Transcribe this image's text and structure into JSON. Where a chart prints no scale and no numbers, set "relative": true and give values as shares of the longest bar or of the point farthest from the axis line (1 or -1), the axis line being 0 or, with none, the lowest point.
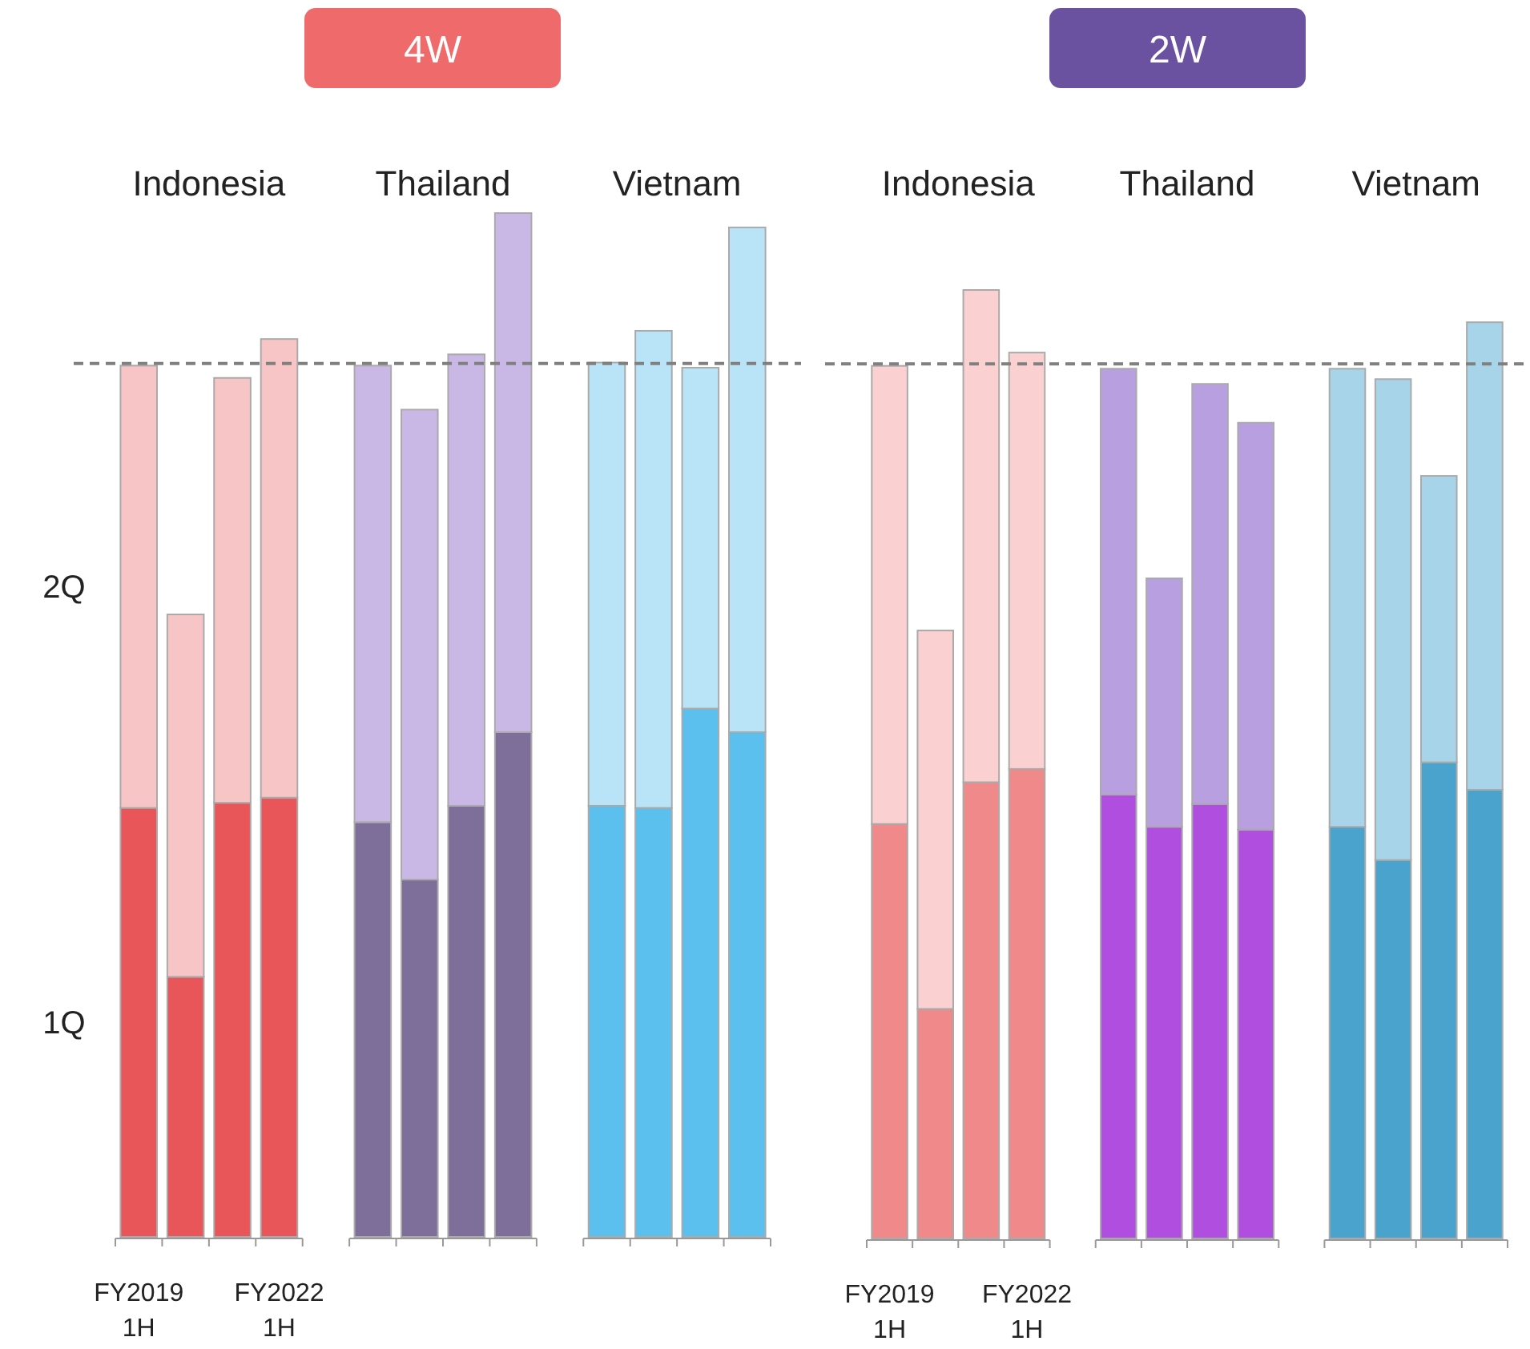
{
  "chart_data": [
    {
      "type": "bar",
      "title": "4W",
      "stacked": true,
      "relative": true,
      "categories": [
        "FY2019 1H",
        null,
        null,
        "FY2022 1H",
        null,
        null,
        null,
        null,
        null,
        null,
        null,
        null,
        null,
        null
      ],
      "annotations": [
        "Indonesia",
        "Thailand",
        "Vietnam"
      ],
      "series": [
        {
          "name": "1Q",
          "values": [
            0.419,
            0.254,
            0.424,
            0.429,
            null,
            0.405,
            0.349,
            0.421,
            0.493,
            null,
            0.421,
            0.419,
            0.516,
            0.493
          ],
          "colors": [
            "#e8565a",
            "#e8565a",
            "#e8565a",
            "#e8565a",
            null,
            "#7d6f9a",
            "#7d6f9a",
            "#7d6f9a",
            "#7d6f9a",
            null,
            "#5bc0ee",
            "#5bc0ee",
            "#5bc0ee",
            "#5bc0ee"
          ]
        },
        {
          "name": "2Q",
          "values": [
            0.432,
            0.354,
            0.415,
            0.448,
            null,
            0.446,
            0.459,
            0.441,
            0.507,
            null,
            0.433,
            0.466,
            0.333,
            0.493
          ],
          "colors": [
            "#f7c5c6",
            "#f7c5c6",
            "#f7c5c6",
            "#f7c5c6",
            null,
            "#c9b8e6",
            "#c9b8e6",
            "#c9b8e6",
            "#c9b8e6",
            null,
            "#b9e4f8",
            "#b9e4f8",
            "#b9e4f8",
            "#b9e4f8"
          ]
        }
      ],
      "ref_lines": [
        {
          "axis": "y",
          "value": 0.853,
          "color": "#808080",
          "line_style": "dashed"
        }
      ]
    },
    {
      "type": "bar",
      "title": "2W",
      "stacked": true,
      "relative": true,
      "categories": [
        "FY2019 1H",
        null,
        null,
        "FY2022 1H",
        null,
        null,
        null,
        null,
        null,
        null,
        null,
        null,
        null,
        null
      ],
      "annotations": [
        "Indonesia",
        "Thailand",
        "Vietnam"
      ],
      "series": [
        {
          "values": [
            0.437,
            0.242,
            0.481,
            0.495,
            null,
            0.468,
            0.434,
            0.458,
            0.431,
            null,
            0.434,
            0.399,
            0.502,
            0.473
          ],
          "colors": [
            "#f08a8a",
            "#f08a8a",
            "#f08a8a",
            "#f08a8a",
            null,
            "#b04ee0",
            "#b04ee0",
            "#b04ee0",
            "#b04ee0",
            null,
            "#4aa3cc",
            "#4aa3cc",
            "#4aa3cc",
            "#4aa3cc"
          ]
        },
        {
          "values": [
            0.483,
            0.399,
            0.519,
            0.439,
            null,
            0.449,
            0.262,
            0.443,
            0.429,
            null,
            0.483,
            0.507,
            0.302,
            0.493
          ],
          "colors": [
            "#fbd0d0",
            "#fbd0d0",
            "#fbd0d0",
            "#fbd0d0",
            null,
            "#b8a0e0",
            "#b8a0e0",
            "#b8a0e0",
            "#b8a0e0",
            null,
            "#a8d4ea",
            "#a8d4ea",
            "#a8d4ea",
            "#a8d4ea"
          ]
        }
      ],
      "ref_lines": [
        {
          "axis": "y",
          "value": 0.922,
          "color": "#808080",
          "line_style": "dashed"
        }
      ]
    }
  ]
}
